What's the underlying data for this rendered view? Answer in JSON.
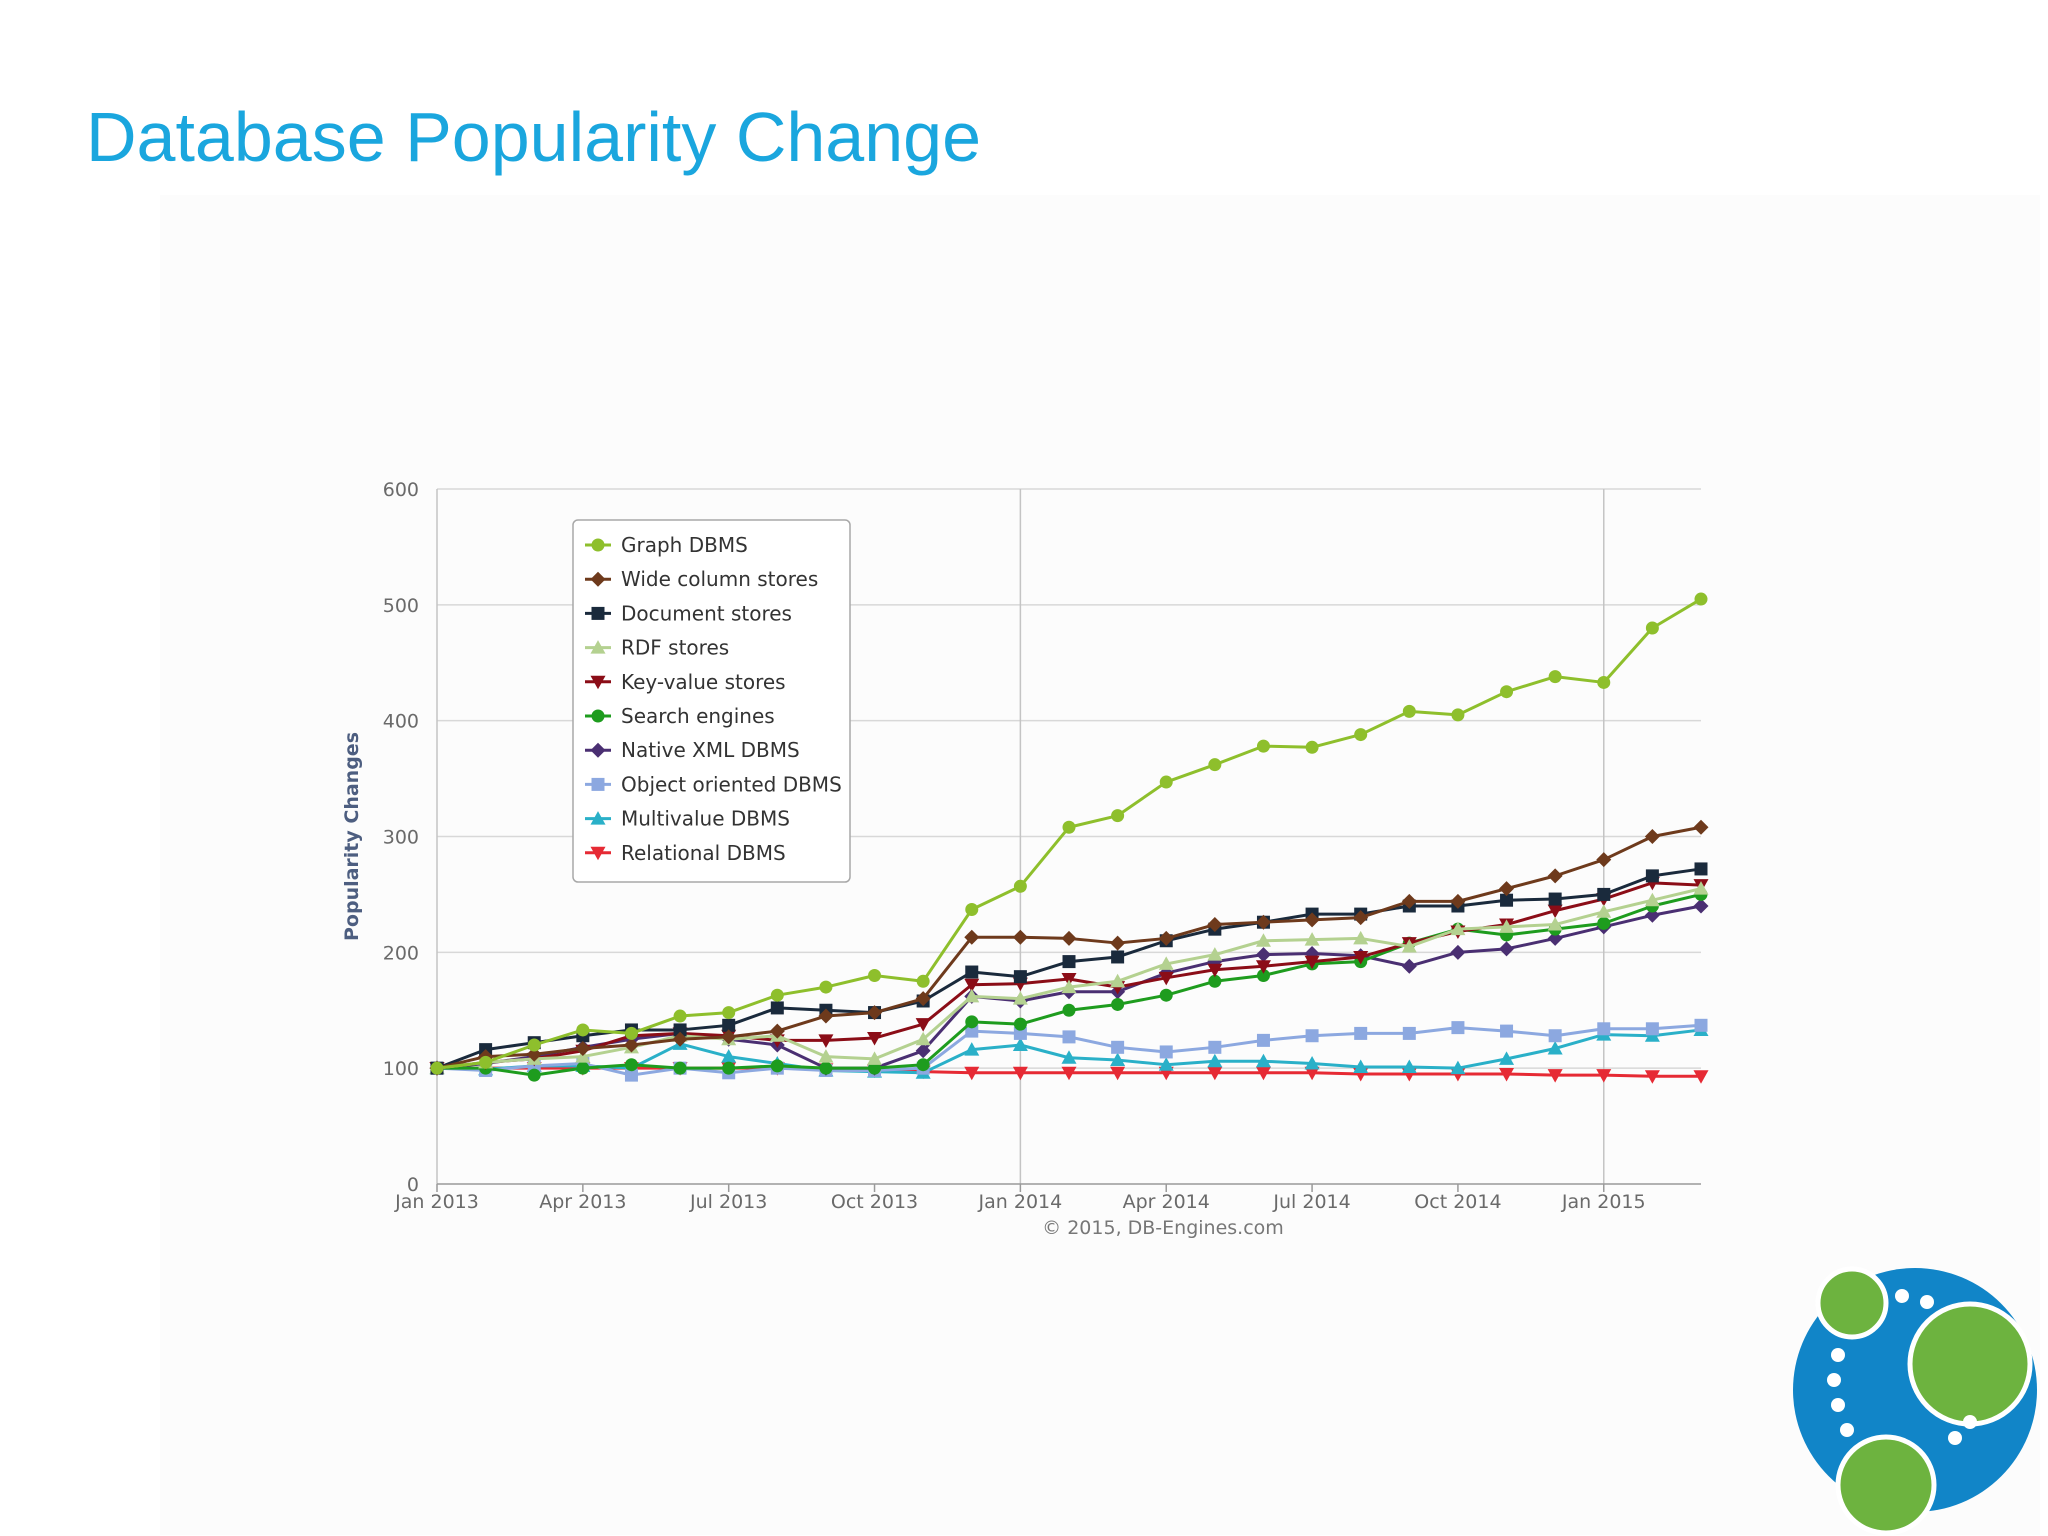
{
  "slide": {
    "title": "Database Popularity Change",
    "title_color": "#1aa6de"
  },
  "logo": {
    "icon": "neo4j-graph-logo-icon",
    "colors": {
      "ring": "#1185c8",
      "nodes": "#6db33f"
    }
  },
  "chart_data": {
    "type": "line",
    "title": "",
    "xlabel": "",
    "ylabel": "Popularity Changes",
    "ylim": [
      0,
      600
    ],
    "yticks": [
      0,
      100,
      200,
      300,
      400,
      500,
      600
    ],
    "xlim": [
      0,
      26
    ],
    "xticks": [
      {
        "label": "Jan 2013",
        "x": 0
      },
      {
        "label": "Apr 2013",
        "x": 3
      },
      {
        "label": "Jul 2013",
        "x": 6
      },
      {
        "label": "Oct 2013",
        "x": 9
      },
      {
        "label": "Jan 2014",
        "x": 12
      },
      {
        "label": "Apr 2014",
        "x": 15
      },
      {
        "label": "Jul 2014",
        "x": 18
      },
      {
        "label": "Oct 2014",
        "x": 21
      },
      {
        "label": "Jan 2015",
        "x": 24
      }
    ],
    "vertical_gridlines_at": [
      0,
      12,
      24
    ],
    "horizontal_grid": true,
    "legend_position": "top-left",
    "credit": "© 2015, DB-Engines.com",
    "x": [
      0,
      1,
      2,
      3,
      4,
      5,
      6,
      7,
      8,
      9,
      10,
      11,
      12,
      13,
      14,
      15,
      16,
      17,
      18,
      19,
      20,
      21,
      22,
      23,
      24,
      25,
      26
    ],
    "series": [
      {
        "name": "Graph DBMS",
        "color": "#8ebf2c",
        "marker": "circle",
        "values": [
          100,
          105,
          120,
          133,
          130,
          145,
          148,
          163,
          170,
          180,
          175,
          237,
          257,
          308,
          318,
          347,
          362,
          378,
          377,
          388,
          408,
          405,
          425,
          438,
          433,
          480,
          505
        ]
      },
      {
        "name": "Wide column stores",
        "color": "#6e3a1c",
        "marker": "diamond",
        "values": [
          100,
          110,
          112,
          117,
          120,
          125,
          127,
          132,
          145,
          148,
          160,
          213,
          213,
          212,
          208,
          212,
          224,
          226,
          228,
          230,
          244,
          244,
          255,
          266,
          280,
          300,
          308
        ]
      },
      {
        "name": "Document stores",
        "color": "#1a2a3c",
        "marker": "square",
        "values": [
          100,
          116,
          122,
          128,
          133,
          133,
          137,
          152,
          150,
          148,
          158,
          183,
          179,
          192,
          196,
          210,
          220,
          226,
          233,
          233,
          240,
          240,
          245,
          246,
          250,
          266,
          272
        ]
      },
      {
        "name": "RDF stores",
        "color": "#b4d190",
        "marker": "triangle",
        "values": [
          100,
          105,
          108,
          110,
          118,
          128,
          125,
          128,
          110,
          108,
          125,
          162,
          160,
          170,
          175,
          190,
          198,
          210,
          211,
          212,
          205,
          220,
          222,
          224,
          235,
          245,
          255
        ]
      },
      {
        "name": "Key-value stores",
        "color": "#8b0d17",
        "marker": "triangle-down",
        "values": [
          100,
          105,
          108,
          115,
          128,
          130,
          128,
          124,
          124,
          126,
          138,
          172,
          173,
          177,
          170,
          178,
          185,
          188,
          192,
          196,
          208,
          218,
          224,
          236,
          246,
          260,
          258
        ]
      },
      {
        "name": "Search engines",
        "color": "#1e9c1e",
        "marker": "circle",
        "values": [
          100,
          100,
          94,
          100,
          103,
          100,
          100,
          102,
          100,
          100,
          103,
          140,
          138,
          150,
          155,
          163,
          175,
          180,
          190,
          192,
          208,
          220,
          215,
          220,
          225,
          240,
          250
        ]
      },
      {
        "name": "Native XML DBMS",
        "color": "#4a2f72",
        "marker": "diamond",
        "values": [
          100,
          104,
          110,
          118,
          125,
          130,
          125,
          120,
          100,
          100,
          115,
          162,
          158,
          166,
          166,
          182,
          192,
          198,
          199,
          197,
          188,
          200,
          203,
          212,
          222,
          232,
          240
        ]
      },
      {
        "name": "Object oriented DBMS",
        "color": "#8ca8e0",
        "marker": "square",
        "values": [
          100,
          98,
          102,
          104,
          94,
          100,
          96,
          100,
          98,
          98,
          100,
          132,
          130,
          127,
          118,
          114,
          118,
          124,
          128,
          130,
          130,
          135,
          132,
          128,
          134,
          134,
          137
        ]
      },
      {
        "name": "Multivalue DBMS",
        "color": "#2ab0c8",
        "marker": "triangle",
        "values": [
          100,
          99,
          102,
          102,
          100,
          121,
          110,
          104,
          98,
          97,
          96,
          116,
          120,
          109,
          107,
          103,
          106,
          106,
          104,
          101,
          101,
          100,
          108,
          117,
          129,
          128,
          133
        ]
      },
      {
        "name": "Relational DBMS",
        "color": "#e62a34",
        "marker": "triangle-down",
        "values": [
          100,
          100,
          100,
          100,
          100,
          100,
          100,
          100,
          99,
          98,
          97,
          96,
          96,
          96,
          96,
          96,
          96,
          96,
          96,
          95,
          95,
          95,
          95,
          94,
          94,
          93,
          93
        ]
      }
    ]
  }
}
